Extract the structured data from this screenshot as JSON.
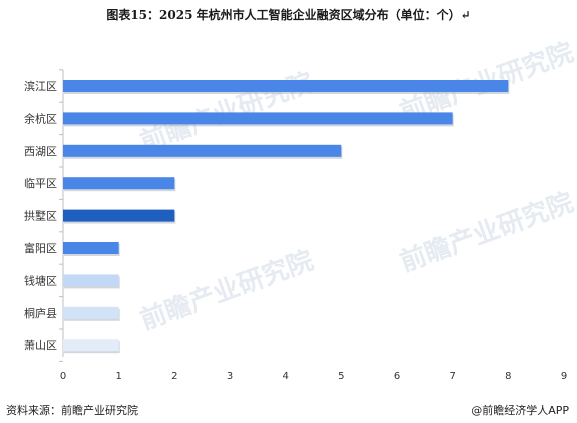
{
  "title": "图表15：2025 年杭州市人工智能企业融资区域分布（单位：个）↵",
  "source": "资料来源：前瞻产业研究院",
  "brand": "@前瞻经济学人APP",
  "watermark": "前瞻产业研究院",
  "chart_data": {
    "type": "bar",
    "orientation": "horizontal",
    "title": "图表15：2025 年杭州市人工智能企业融资区域分布（单位：个）",
    "categories": [
      "滨江区",
      "余杭区",
      "西湖区",
      "临平区",
      "拱墅区",
      "富阳区",
      "钱塘区",
      "桐庐县",
      "萧山区"
    ],
    "values": [
      8,
      7,
      5,
      2,
      2,
      1,
      1,
      1,
      1
    ],
    "colors": [
      "#4a86e8",
      "#4a86e8",
      "#4a86e8",
      "#4a86e8",
      "#1f5fbf",
      "#4a86e8",
      "#c3d8f5",
      "#d3e3f7",
      "#e3edf9"
    ],
    "xlim": [
      0,
      9
    ],
    "xticks": [
      0,
      1,
      2,
      3,
      4,
      5,
      6,
      7,
      8,
      9
    ],
    "grid": false,
    "legend": "none"
  }
}
